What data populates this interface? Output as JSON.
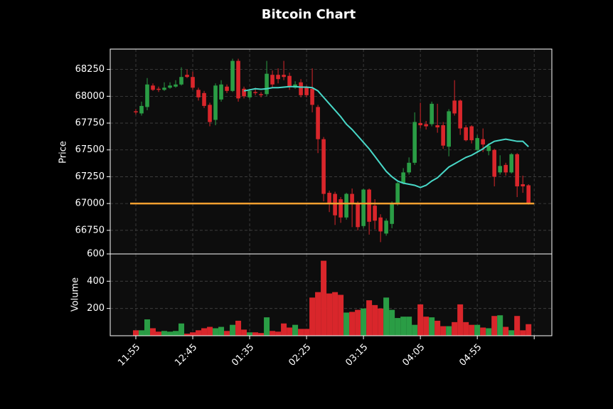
{
  "chart_data": {
    "type": "candlestick",
    "title": "Bitcoin Chart",
    "ylabel": "Price",
    "up_color": "#2a9d45",
    "down_color": "#d9262b",
    "grid": true,
    "xlim": [
      -4.5,
      73.1
    ],
    "xticks": [
      {
        "value": 0,
        "label": "11:55"
      },
      {
        "value": 10,
        "label": "12:45"
      },
      {
        "value": 20,
        "label": "01:35"
      },
      {
        "value": 30,
        "label": "02:25"
      },
      {
        "value": 40,
        "label": "03:15"
      },
      {
        "value": 50,
        "label": "04:05"
      },
      {
        "value": 60,
        "label": "04:55"
      },
      {
        "value": 70,
        "label": null
      }
    ],
    "ylim": [
      66530,
      68440
    ],
    "yticks": [
      66750,
      67000,
      67250,
      67500,
      67750,
      68000,
      68250
    ],
    "open": [
      67860,
      67840,
      67900,
      68100,
      68070,
      68060,
      68080,
      68090,
      68110,
      68200,
      68180,
      68060,
      68030,
      67920,
      67780,
      67970,
      68090,
      68050,
      68330,
      68070,
      67990,
      68040,
      68020,
      68020,
      68200,
      68200,
      68200,
      68190,
      68080,
      68130,
      68080,
      68070,
      67900,
      67600,
      67100,
      67090,
      67040,
      66870,
      67090,
      67000,
      66790,
      67130,
      66980,
      66870,
      66720,
      66810,
      67000,
      67190,
      67290,
      67380,
      67750,
      67740,
      67740,
      67730,
      67730,
      67530,
      67960,
      67960,
      67710,
      67720,
      67500,
      67600,
      67490,
      67500,
      67290,
      67360,
      67290,
      67460,
      67180,
      67170
    ],
    "high": [
      67880,
      67950,
      68170,
      68120,
      68090,
      68130,
      68130,
      68150,
      68270,
      68250,
      68230,
      68080,
      68050,
      67940,
      68120,
      68150,
      68110,
      68350,
      68350,
      68090,
      68070,
      68080,
      68040,
      68330,
      68240,
      68260,
      68330,
      68220,
      68140,
      68160,
      68100,
      68260,
      67920,
      67620,
      67120,
      67110,
      67060,
      67100,
      67140,
      67020,
      67140,
      67140,
      67040,
      66900,
      66860,
      67020,
      67200,
      67330,
      67430,
      67850,
      67940,
      67770,
      67950,
      67930,
      67760,
      67880,
      68150,
      67970,
      67730,
      67730,
      67640,
      67700,
      67560,
      67510,
      67450,
      67380,
      67470,
      67470,
      67260,
      67180
    ],
    "low": [
      67830,
      67820,
      67870,
      68050,
      68040,
      68050,
      68070,
      68080,
      68100,
      68170,
      68060,
      67960,
      67890,
      67720,
      67730,
      67950,
      68030,
      68040,
      67950,
      67980,
      67970,
      68010,
      67990,
      68000,
      68080,
      68120,
      68150,
      68060,
      68070,
      67990,
      67990,
      67850,
      67470,
      67020,
      66920,
      66800,
      66820,
      66850,
      66780,
      66750,
      66770,
      66710,
      66760,
      66640,
      66700,
      66770,
      66980,
      67180,
      67270,
      67360,
      67700,
      67690,
      67720,
      67660,
      67510,
      67440,
      67820,
      67640,
      67580,
      67560,
      67470,
      67480,
      67450,
      67160,
      67270,
      67260,
      67280,
      67060,
      67100,
      66990
    ],
    "close": [
      67850,
      67910,
      68110,
      68060,
      68060,
      68080,
      68100,
      68110,
      68180,
      68180,
      68080,
      67990,
      67910,
      67760,
      68100,
      68110,
      68050,
      68330,
      67980,
      68000,
      68050,
      68030,
      68010,
      68210,
      68110,
      68160,
      68180,
      68090,
      68110,
      68010,
      68010,
      67920,
      67600,
      67090,
      67000,
      66890,
      66870,
      67090,
      67000,
      66780,
      67130,
      66830,
      66840,
      66740,
      66840,
      67000,
      67190,
      67290,
      67380,
      67760,
      67730,
      67720,
      67930,
      67710,
      67540,
      67860,
      67840,
      67700,
      67590,
      67590,
      67610,
      67550,
      67540,
      67250,
      67350,
      67290,
      67460,
      67160,
      67160,
      67000
    ],
    "ma": {
      "color": "#48d8c8",
      "values": [
        null,
        null,
        null,
        null,
        null,
        null,
        null,
        null,
        null,
        null,
        null,
        null,
        null,
        null,
        null,
        null,
        null,
        null,
        null,
        68050,
        68060,
        68070,
        68065,
        68070,
        68080,
        68080,
        68085,
        68090,
        68090,
        68085,
        68085,
        68080,
        68050,
        67990,
        67930,
        67870,
        67810,
        67740,
        67690,
        67630,
        67570,
        67510,
        67440,
        67370,
        67300,
        67250,
        67210,
        67190,
        67180,
        67170,
        67150,
        67170,
        67210,
        67240,
        67290,
        67340,
        67370,
        67400,
        67430,
        67450,
        67480,
        67510,
        67550,
        67580,
        67590,
        67600,
        67590,
        67580,
        67580,
        67530
      ]
    },
    "hline": {
      "value": 67000,
      "color": "#f5a030"
    },
    "volume": {
      "ylabel": "Volume",
      "ylim": [
        0,
        600
      ],
      "yticks": [
        200,
        400,
        600
      ],
      "values": [
        40,
        40,
        120,
        55,
        30,
        35,
        30,
        35,
        90,
        15,
        25,
        40,
        55,
        65,
        55,
        65,
        35,
        80,
        110,
        45,
        25,
        25,
        20,
        135,
        35,
        30,
        90,
        60,
        80,
        50,
        50,
        280,
        320,
        550,
        310,
        320,
        300,
        170,
        175,
        190,
        200,
        260,
        225,
        200,
        280,
        190,
        130,
        140,
        140,
        80,
        230,
        140,
        135,
        110,
        70,
        70,
        100,
        230,
        100,
        80,
        80,
        60,
        55,
        145,
        150,
        65,
        40,
        145,
        40,
        85
      ]
    }
  }
}
